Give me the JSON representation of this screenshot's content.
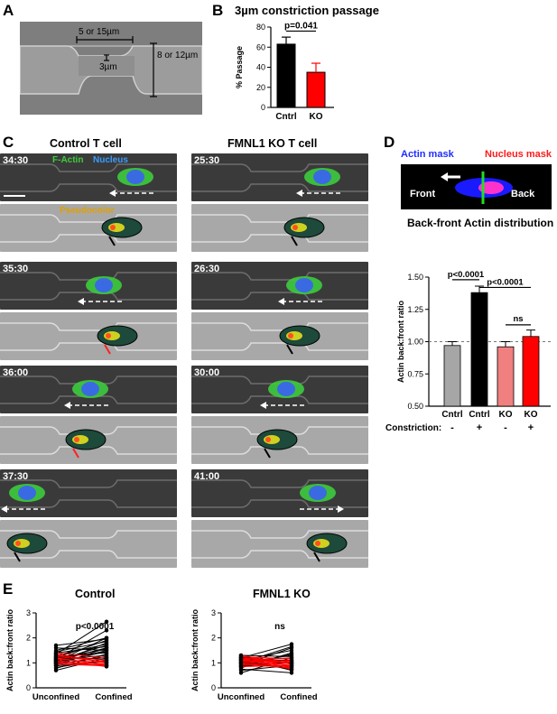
{
  "panels": {
    "A": "A",
    "B": "B",
    "C": "C",
    "D": "D",
    "E": "E"
  },
  "panel_a": {
    "width_label": "5 or 15µm",
    "height_label": "8 or 12µm",
    "constriction_label": "3µm"
  },
  "panel_b": {
    "title": "3µm constriction passage",
    "pvalue": "p=0.041"
  },
  "panel_c": {
    "left_title": "Control T cell",
    "right_title": "FMNL1 KO T cell",
    "factin_label": "F-Actin",
    "nucleus_label": "Nucleus",
    "pseudo_label": "Pseudocolor",
    "left_times": [
      "34:30",
      "35:30",
      "36:00",
      "37:30"
    ],
    "right_times": [
      "25:30",
      "26:30",
      "30:00",
      "41:00"
    ]
  },
  "panel_d": {
    "actin_mask": "Actin mask",
    "nucleus_mask": "Nucleus mask",
    "front": "Front",
    "back": "Back",
    "title": "Back-front Actin distribution",
    "constriction_label": "Constriction:"
  },
  "panel_e": {
    "left_title": "Control",
    "right_title": "FMNL1 KO",
    "left_p": "p<0.0001",
    "right_p": "ns"
  },
  "colors": {
    "black": "#000000",
    "red": "#ff0000",
    "grey": "#a6a6a6",
    "pink": "#f08080",
    "green": "#22cc22",
    "blue": "#2233ff"
  },
  "chart_data": [
    {
      "type": "bar",
      "categories": [
        "Cntrl",
        "KO"
      ],
      "values": [
        63,
        35
      ],
      "errors": [
        7,
        9
      ],
      "colors": [
        "#000000",
        "#ff0000"
      ],
      "ylabel": "% Passage",
      "ylim": [
        0,
        80
      ],
      "yticks": [
        0,
        20,
        40,
        60,
        80
      ],
      "annotations": [
        "p=0.041"
      ]
    },
    {
      "type": "bar",
      "categories": [
        "Cntrl",
        "Cntrl",
        "KO",
        "KO"
      ],
      "constriction": [
        "-",
        "+",
        "-",
        "+"
      ],
      "values": [
        0.97,
        1.38,
        0.96,
        1.04
      ],
      "errors": [
        0.03,
        0.05,
        0.04,
        0.05
      ],
      "colors": [
        "#a6a6a6",
        "#000000",
        "#f08080",
        "#ff0000"
      ],
      "ylabel": "Actin back:front ratio",
      "ylim": [
        0.5,
        1.5
      ],
      "yticks": [
        "0.50",
        "0.75",
        "1.00",
        "1.25",
        "1.50"
      ],
      "reference_line": 1.0,
      "annotations": [
        "p<0.0001",
        "p<0.0001",
        "ns"
      ]
    },
    {
      "type": "line",
      "title": "Control",
      "categories": [
        "Unconfined",
        "Confined"
      ],
      "ylabel": "Actin back:front ratio",
      "ylim": [
        0,
        3
      ],
      "yticks": [
        0,
        1,
        2,
        3
      ],
      "series": [
        {
          "color": "#000000",
          "values": [
            [
              0.78,
              1.35
            ],
            [
              0.82,
              1.1
            ],
            [
              0.9,
              1.6
            ],
            [
              0.95,
              1.25
            ],
            [
              1.0,
              1.8
            ],
            [
              1.02,
              1.45
            ],
            [
              1.05,
              2.0
            ],
            [
              1.1,
              1.7
            ],
            [
              1.12,
              1.3
            ],
            [
              1.15,
              2.3
            ],
            [
              1.18,
              1.55
            ],
            [
              1.2,
              1.9
            ],
            [
              1.25,
              1.4
            ],
            [
              1.3,
              1.75
            ],
            [
              1.35,
              2.65
            ],
            [
              1.4,
              1.65
            ],
            [
              1.5,
              2.0
            ],
            [
              1.6,
              1.5
            ],
            [
              1.7,
              1.95
            ],
            [
              0.88,
              1.05
            ],
            [
              0.7,
              1.2
            ],
            [
              1.08,
              1.6
            ],
            [
              1.22,
              1.15
            ],
            [
              1.45,
              1.85
            ],
            [
              0.98,
              1.5
            ]
          ]
        },
        {
          "color": "#ff0000",
          "values": [
            [
              1.05,
              0.95
            ],
            [
              1.1,
              0.85
            ],
            [
              1.15,
              1.0
            ],
            [
              1.2,
              0.9
            ],
            [
              1.25,
              1.05
            ],
            [
              1.3,
              1.1
            ],
            [
              1.0,
              0.9
            ],
            [
              1.4,
              1.2
            ],
            [
              1.35,
              1.0
            ],
            [
              0.95,
              0.88
            ]
          ]
        }
      ]
    },
    {
      "type": "line",
      "title": "FMNL1 KO",
      "categories": [
        "Unconfined",
        "Confined"
      ],
      "ylabel": "Actin back:front ratio",
      "ylim": [
        0,
        3
      ],
      "yticks": [
        0,
        1,
        2,
        3
      ],
      "series": [
        {
          "color": "#000000",
          "values": [
            [
              0.6,
              1.2
            ],
            [
              0.7,
              0.9
            ],
            [
              0.8,
              1.4
            ],
            [
              0.85,
              1.05
            ],
            [
              0.9,
              1.6
            ],
            [
              0.95,
              1.0
            ],
            [
              1.0,
              1.3
            ],
            [
              1.05,
              0.75
            ],
            [
              1.1,
              1.5
            ],
            [
              1.15,
              1.1
            ],
            [
              1.2,
              1.75
            ],
            [
              1.25,
              0.95
            ],
            [
              1.3,
              1.25
            ],
            [
              1.2,
              0.7
            ],
            [
              0.75,
              0.6
            ],
            [
              1.0,
              1.65
            ],
            [
              0.85,
              1.35
            ]
          ]
        },
        {
          "color": "#ff0000",
          "values": [
            [
              0.9,
              1.0
            ],
            [
              1.0,
              0.85
            ],
            [
              1.05,
              1.1
            ],
            [
              1.1,
              0.9
            ],
            [
              1.15,
              1.0
            ],
            [
              1.2,
              0.8
            ],
            [
              1.25,
              1.15
            ],
            [
              1.3,
              0.95
            ],
            [
              0.95,
              0.8
            ],
            [
              1.0,
              1.05
            ],
            [
              1.1,
              1.2
            ],
            [
              1.2,
              1.05
            ],
            [
              1.3,
              0.85
            ],
            [
              0.85,
              0.9
            ],
            [
              1.15,
              0.75
            ]
          ]
        }
      ]
    }
  ]
}
